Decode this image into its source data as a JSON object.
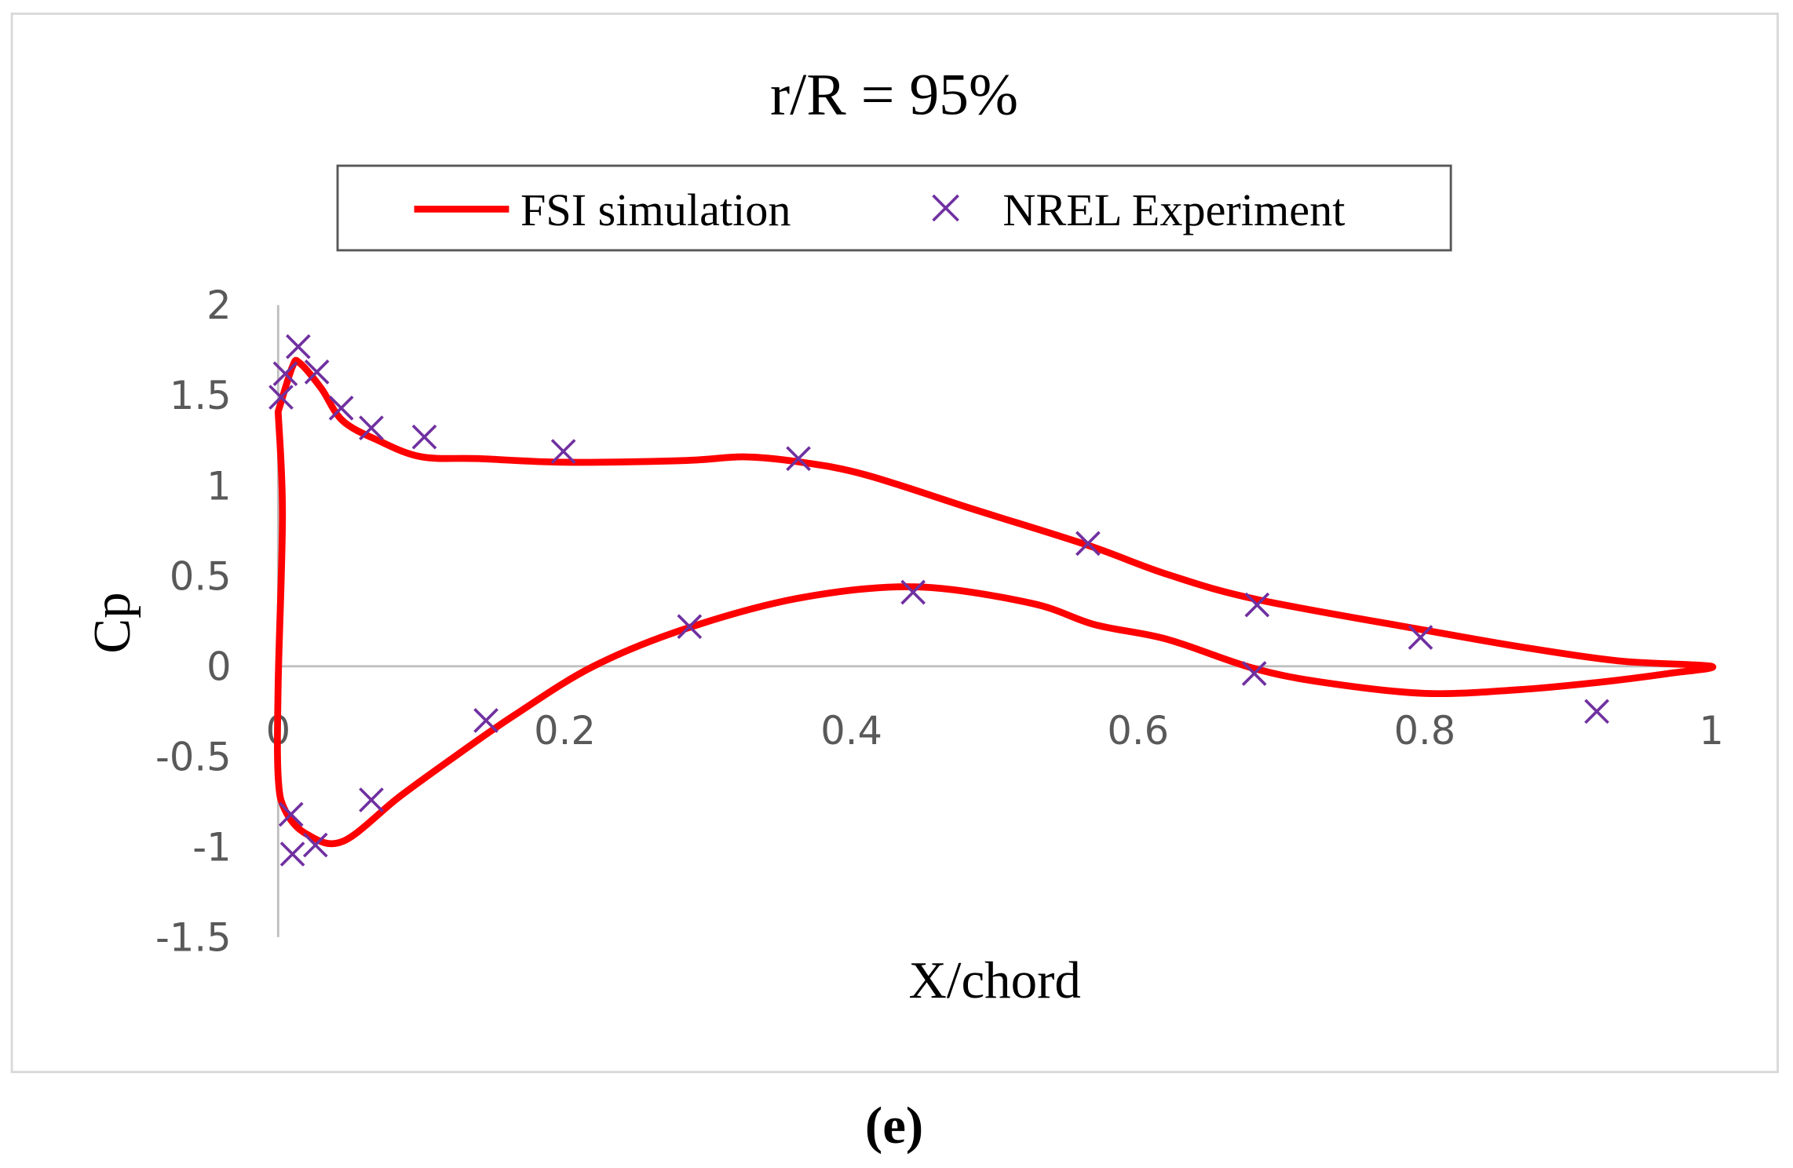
{
  "chart_data": {
    "type": "line",
    "title": "r/R = 95%",
    "xlabel": "X/chord",
    "ylabel": "Cp",
    "xlim": [
      0,
      1
    ],
    "ylim": [
      -1.5,
      2
    ],
    "xticks": [
      "0",
      "0.2",
      "0.4",
      "0.6",
      "0.8",
      "1"
    ],
    "xtick_values": [
      0,
      0.2,
      0.4,
      0.6,
      0.8,
      1
    ],
    "yticks": [
      "2",
      "1.5",
      "1",
      "0.5",
      "0",
      "-0.5",
      "-1",
      "-1.5"
    ],
    "ytick_values": [
      2,
      1.5,
      1,
      0.5,
      0,
      -0.5,
      -1,
      -1.5
    ],
    "grid": false,
    "legend_placement": "top",
    "series": [
      {
        "name": "FSI simulation",
        "kind": "line",
        "color": "#ff0000",
        "x": [
          0,
          0.01,
          0.015,
          0.03,
          0.045,
          0.07,
          0.1,
          0.14,
          0.2,
          0.285,
          0.325,
          0.365,
          0.41,
          0.485,
          0.565,
          0.62,
          0.683,
          0.8,
          0.865,
          0.935,
          1,
          0.97,
          0.92,
          0.865,
          0.8,
          0.73,
          0.68,
          0.62,
          0.57,
          0.525,
          0.445,
          0.365,
          0.285,
          0.22,
          0.165,
          0.125,
          0.085,
          0.045,
          0.02,
          0.005,
          0,
          0,
          0.003,
          0
        ],
        "y": [
          1.41,
          1.66,
          1.68,
          1.54,
          1.36,
          1.25,
          1.16,
          1.15,
          1.13,
          1.14,
          1.16,
          1.13,
          1.06,
          0.87,
          0.67,
          0.51,
          0.37,
          0.2,
          0.11,
          0.03,
          0,
          -0.04,
          -0.09,
          -0.13,
          -0.15,
          -0.09,
          -0.01,
          0.15,
          0.23,
          0.35,
          0.44,
          0.38,
          0.21,
          0.0,
          -0.27,
          -0.49,
          -0.72,
          -0.97,
          -0.93,
          -0.8,
          -0.61,
          -0.1,
          0.84,
          1.41
        ]
      },
      {
        "name": "NREL Experiment",
        "kind": "scatter",
        "marker": "x",
        "color": "#7030a0",
        "x": [
          0.002,
          0.005,
          0.014,
          0.027,
          0.044,
          0.065,
          0.102,
          0.199,
          0.363,
          0.565,
          0.683,
          0.797,
          0.92,
          0.009,
          0.01,
          0.026,
          0.065,
          0.145,
          0.287,
          0.443,
          0.681
        ],
        "y": [
          1.49,
          1.62,
          1.77,
          1.63,
          1.43,
          1.32,
          1.27,
          1.19,
          1.15,
          0.68,
          0.34,
          0.16,
          -0.25,
          -0.82,
          -1.04,
          -0.99,
          -0.74,
          -0.3,
          0.22,
          0.41,
          -0.04
        ]
      }
    ]
  },
  "caption": "(e)"
}
